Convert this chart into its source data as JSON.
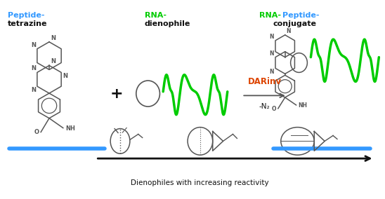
{
  "bg_color": "#ffffff",
  "peptide_color": "#3399ff",
  "rna_color": "#00cc00",
  "arrow_color": "#dd4400",
  "black": "#111111",
  "dark_gray": "#555555",
  "blue_line_color": "#3399ff",
  "reaction_label": "DARinv",
  "reaction_sublabel": "-N₂",
  "bottom_label": "Dienophiles with increasing reactivity",
  "fig_width": 5.48,
  "fig_height": 2.84,
  "dpi": 100
}
